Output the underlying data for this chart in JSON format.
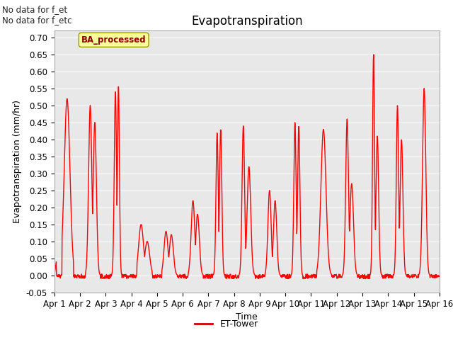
{
  "title": "Evapotranspiration",
  "xlabel": "Time",
  "ylabel": "Evapotranspiration (mm/hr)",
  "ylim": [
    -0.05,
    0.72
  ],
  "yticks": [
    -0.05,
    0.0,
    0.05,
    0.1,
    0.15,
    0.2,
    0.25,
    0.3,
    0.35,
    0.4,
    0.45,
    0.5,
    0.55,
    0.6,
    0.65,
    0.7
  ],
  "xtick_labels": [
    "Apr 1",
    "Apr 2",
    "Apr 3",
    "Apr 4",
    "Apr 5",
    "Apr 6",
    "Apr 7",
    "Apr 8",
    "Apr 9",
    "Apr 10",
    "Apr 11",
    "Apr 12",
    "Apr 13",
    "Apr 14",
    "Apr 15",
    "Apr 16"
  ],
  "line_color": "#ff0000",
  "line_width": 1.0,
  "legend_label": "ET-Tower",
  "legend_line_color": "#cc0000",
  "top_left_text_line1": "No data for f_et",
  "top_left_text_line2": "No data for f_etc",
  "box_label": "BA_processed",
  "box_facecolor": "#ffff99",
  "box_edgecolor": "#999900",
  "fig_facecolor": "#ffffff",
  "plot_bg_color": "#e8e8e8",
  "grid_color": "#ffffff",
  "num_days": 15,
  "points_per_day": 96,
  "title_fontsize": 12,
  "label_fontsize": 9,
  "tick_fontsize": 8.5
}
